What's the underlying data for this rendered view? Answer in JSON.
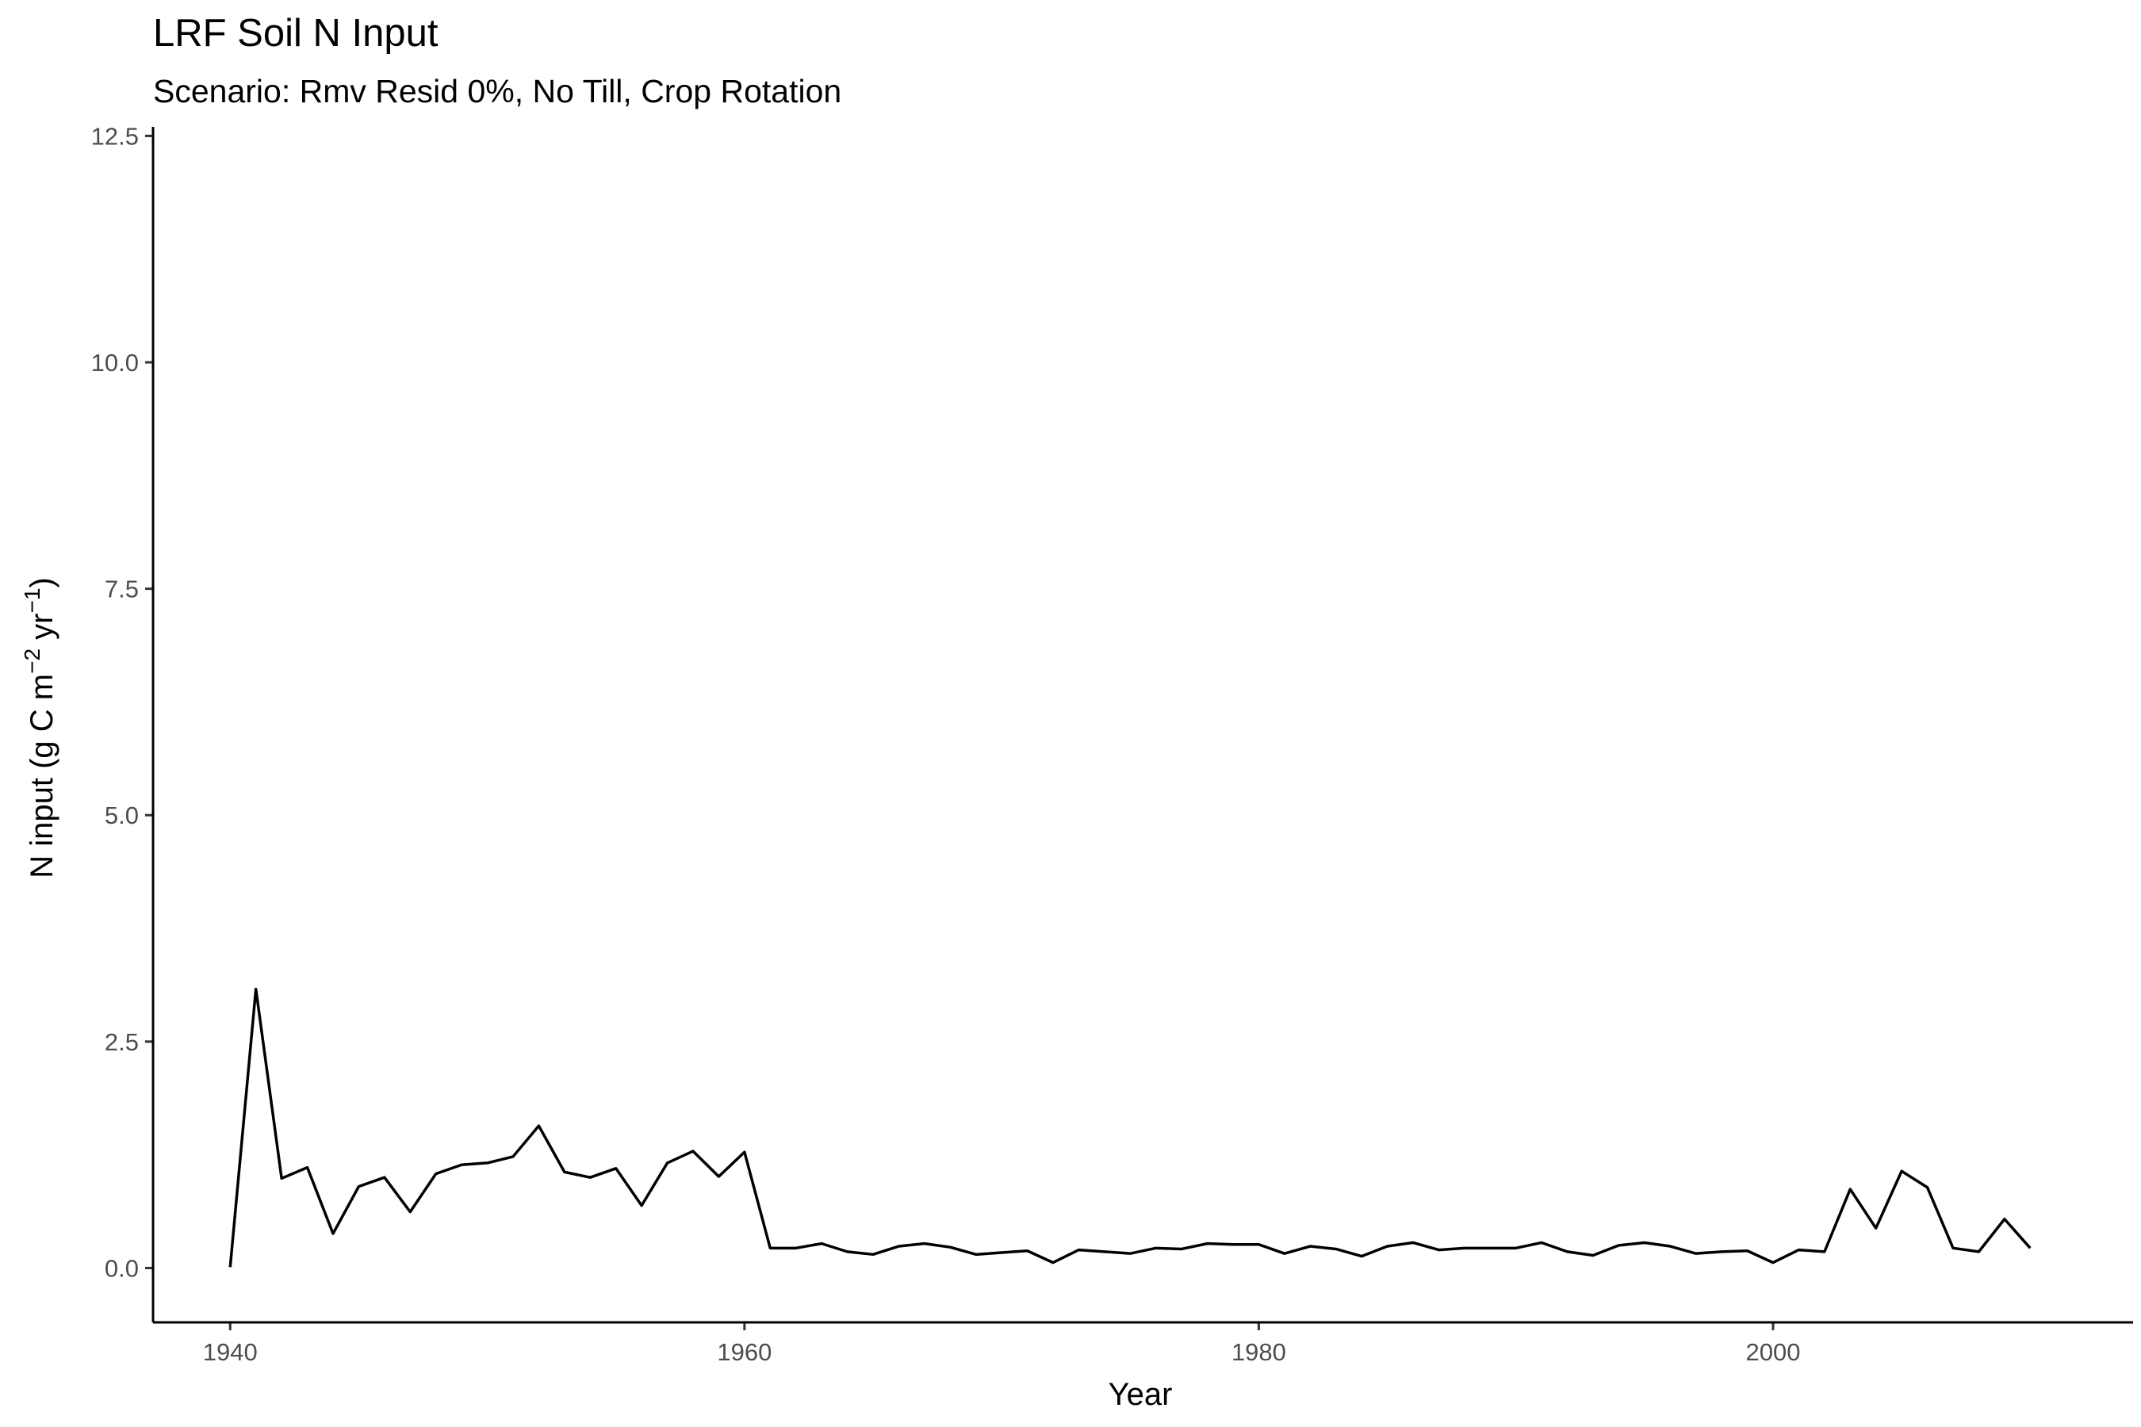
{
  "chart_data": {
    "type": "line",
    "title": "LRF Soil N Input",
    "subtitle": "Scenario: Rmv Resid 0%, No Till, Crop Rotation",
    "xlabel": "Year",
    "ylabel": {
      "prefix": "N input (g C m",
      "sup1": "−2",
      "mid": " yr",
      "sup2": "−1",
      "suffix": ")"
    },
    "xlim": [
      1937,
      2014
    ],
    "ylim": [
      -0.6,
      12.6
    ],
    "xticks": [
      1940,
      1960,
      1980,
      2000
    ],
    "yticks": [
      0,
      2.5,
      5,
      7.5,
      10,
      12.5
    ],
    "ytick_labels": [
      "0.0",
      "2.5",
      "5.0",
      "7.5",
      "10.0",
      "12.5"
    ],
    "grid": false,
    "series": [
      {
        "color": "#000000",
        "x": [
          1940,
          1941,
          1942,
          1943,
          1944,
          1945,
          1946,
          1947,
          1948,
          1949,
          1950,
          1951,
          1952,
          1953,
          1954,
          1955,
          1956,
          1957,
          1958,
          1959,
          1960,
          1961,
          1962,
          1963,
          1964,
          1965,
          1966,
          1967,
          1968,
          1969,
          1970,
          1971,
          1972,
          1973,
          1974,
          1975,
          1976,
          1977,
          1978,
          1979,
          1980,
          1981,
          1982,
          1983,
          1984,
          1985,
          1986,
          1987,
          1988,
          1989,
          1990,
          1991,
          1992,
          1993,
          1994,
          1995,
          1996,
          1997,
          1998,
          1999,
          2000,
          2001,
          2002,
          2003,
          2004,
          2005,
          2006,
          2007,
          2008,
          2009,
          2010
        ],
        "y": [
          0.01,
          3.08,
          0.99,
          1.11,
          0.38,
          0.9,
          1.0,
          0.62,
          1.04,
          1.14,
          1.16,
          1.23,
          1.57,
          1.06,
          1.0,
          1.1,
          0.69,
          1.16,
          1.29,
          1.01,
          1.28,
          0.22,
          0.22,
          0.27,
          0.18,
          0.15,
          0.24,
          0.27,
          0.23,
          0.15,
          0.17,
          0.19,
          0.06,
          0.2,
          0.18,
          0.16,
          0.22,
          0.21,
          0.27,
          0.26,
          0.26,
          0.16,
          0.24,
          0.21,
          0.13,
          0.24,
          0.28,
          0.2,
          0.22,
          0.22,
          0.22,
          0.28,
          0.18,
          0.14,
          0.25,
          0.28,
          0.24,
          0.16,
          0.18,
          0.19,
          0.06,
          0.2,
          0.18,
          0.87,
          0.44,
          1.07,
          0.89,
          0.22,
          0.18,
          0.54,
          0.22
        ]
      }
    ]
  }
}
